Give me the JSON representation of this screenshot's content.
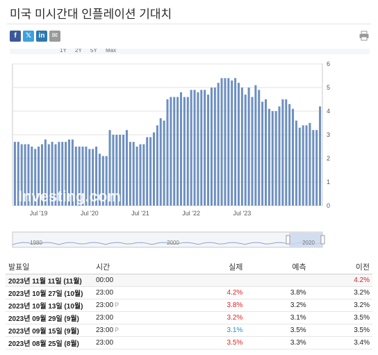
{
  "page": {
    "title": "미국 미시간대 인플레이션 기대치",
    "share_buttons": [
      {
        "name": "facebook",
        "glyph": "f",
        "color": "#3b5998"
      },
      {
        "name": "twitter",
        "glyph": "𝕏",
        "color": "#3ea0dc"
      },
      {
        "name": "linkedin",
        "glyph": "in",
        "color": "#2a79b1"
      },
      {
        "name": "email",
        "glyph": "✉",
        "color": "#9a9a9a"
      }
    ],
    "print_icon": "printer-icon"
  },
  "toolbar": {
    "range_labels": [
      "1Y",
      "2Y",
      "5Y",
      "Max"
    ]
  },
  "chart_data": {
    "type": "bar",
    "bar_color": "#6d8fc0",
    "ylim": [
      0,
      6
    ],
    "yticks": [
      0,
      1,
      2,
      3,
      4,
      5,
      6
    ],
    "xtick_labels": [
      "Jul '19",
      "Jul '20",
      "Jul '21",
      "Jul '22",
      "Jul '23"
    ],
    "xtick_indices": [
      7,
      22,
      37,
      52,
      67
    ],
    "values": [
      2.7,
      2.7,
      2.6,
      2.6,
      2.6,
      2.5,
      2.4,
      2.5,
      2.6,
      2.8,
      2.6,
      2.7,
      2.6,
      2.7,
      2.7,
      2.7,
      2.8,
      2.8,
      2.5,
      2.5,
      2.5,
      2.5,
      2.4,
      2.4,
      2.5,
      2.2,
      2.1,
      2.1,
      3.2,
      3.0,
      3.0,
      3.0,
      3.0,
      3.2,
      2.7,
      2.7,
      2.5,
      2.6,
      2.6,
      2.9,
      2.9,
      3.1,
      3.4,
      3.7,
      3.6,
      4.5,
      4.6,
      4.6,
      4.6,
      4.8,
      4.6,
      4.6,
      4.9,
      4.9,
      4.8,
      4.9,
      4.9,
      4.7,
      5.0,
      5.0,
      5.2,
      5.4,
      5.4,
      5.4,
      5.3,
      5.4,
      5.2,
      5.0,
      4.7,
      5.0,
      4.6,
      5.1,
      4.9,
      4.4,
      4.5,
      4.1,
      4.0,
      4.0,
      4.2,
      4.5,
      4.5,
      4.3,
      4.1,
      3.6,
      3.3,
      3.4,
      3.4,
      3.5,
      3.2,
      3.2,
      4.2
    ],
    "navigator": {
      "labels": [
        "1980",
        "2000",
        "2020"
      ]
    }
  },
  "table": {
    "headers": [
      "발표일",
      "시간",
      "실제",
      "예측",
      "이전"
    ],
    "rows": [
      {
        "date": "2023년 11월 11일 (11월)",
        "time": "00:00",
        "pmark": "",
        "actual": "",
        "actual_color": "",
        "forecast": "",
        "previous": "4.2%",
        "previous_color": "#e02020"
      },
      {
        "date": "2023년 10월 27일 (10월)",
        "time": "23:00",
        "pmark": "",
        "actual": "4.2%",
        "actual_color": "#e02020",
        "forecast": "3.8%",
        "previous": "3.2%",
        "previous_color": ""
      },
      {
        "date": "2023년 10월 13일 (10월)",
        "time": "23:00",
        "pmark": "P",
        "actual": "3.8%",
        "actual_color": "#e02020",
        "forecast": "3.2%",
        "previous": "3.2%",
        "previous_color": ""
      },
      {
        "date": "2023년 09월 29일 (9월)",
        "time": "23:00",
        "pmark": "",
        "actual": "3.2%",
        "actual_color": "#e02020",
        "forecast": "3.1%",
        "previous": "3.5%",
        "previous_color": ""
      },
      {
        "date": "2023년 09월 15일 (9월)",
        "time": "23:00",
        "pmark": "P",
        "actual": "3.1%",
        "actual_color": "#2a8cc8",
        "forecast": "3.5%",
        "previous": "3.5%",
        "previous_color": ""
      },
      {
        "date": "2023년 08월 25일 (8월)",
        "time": "23:00",
        "pmark": "",
        "actual": "3.5%",
        "actual_color": "#e02020",
        "forecast": "3.3%",
        "previous": "3.4%",
        "previous_color": ""
      }
    ]
  }
}
